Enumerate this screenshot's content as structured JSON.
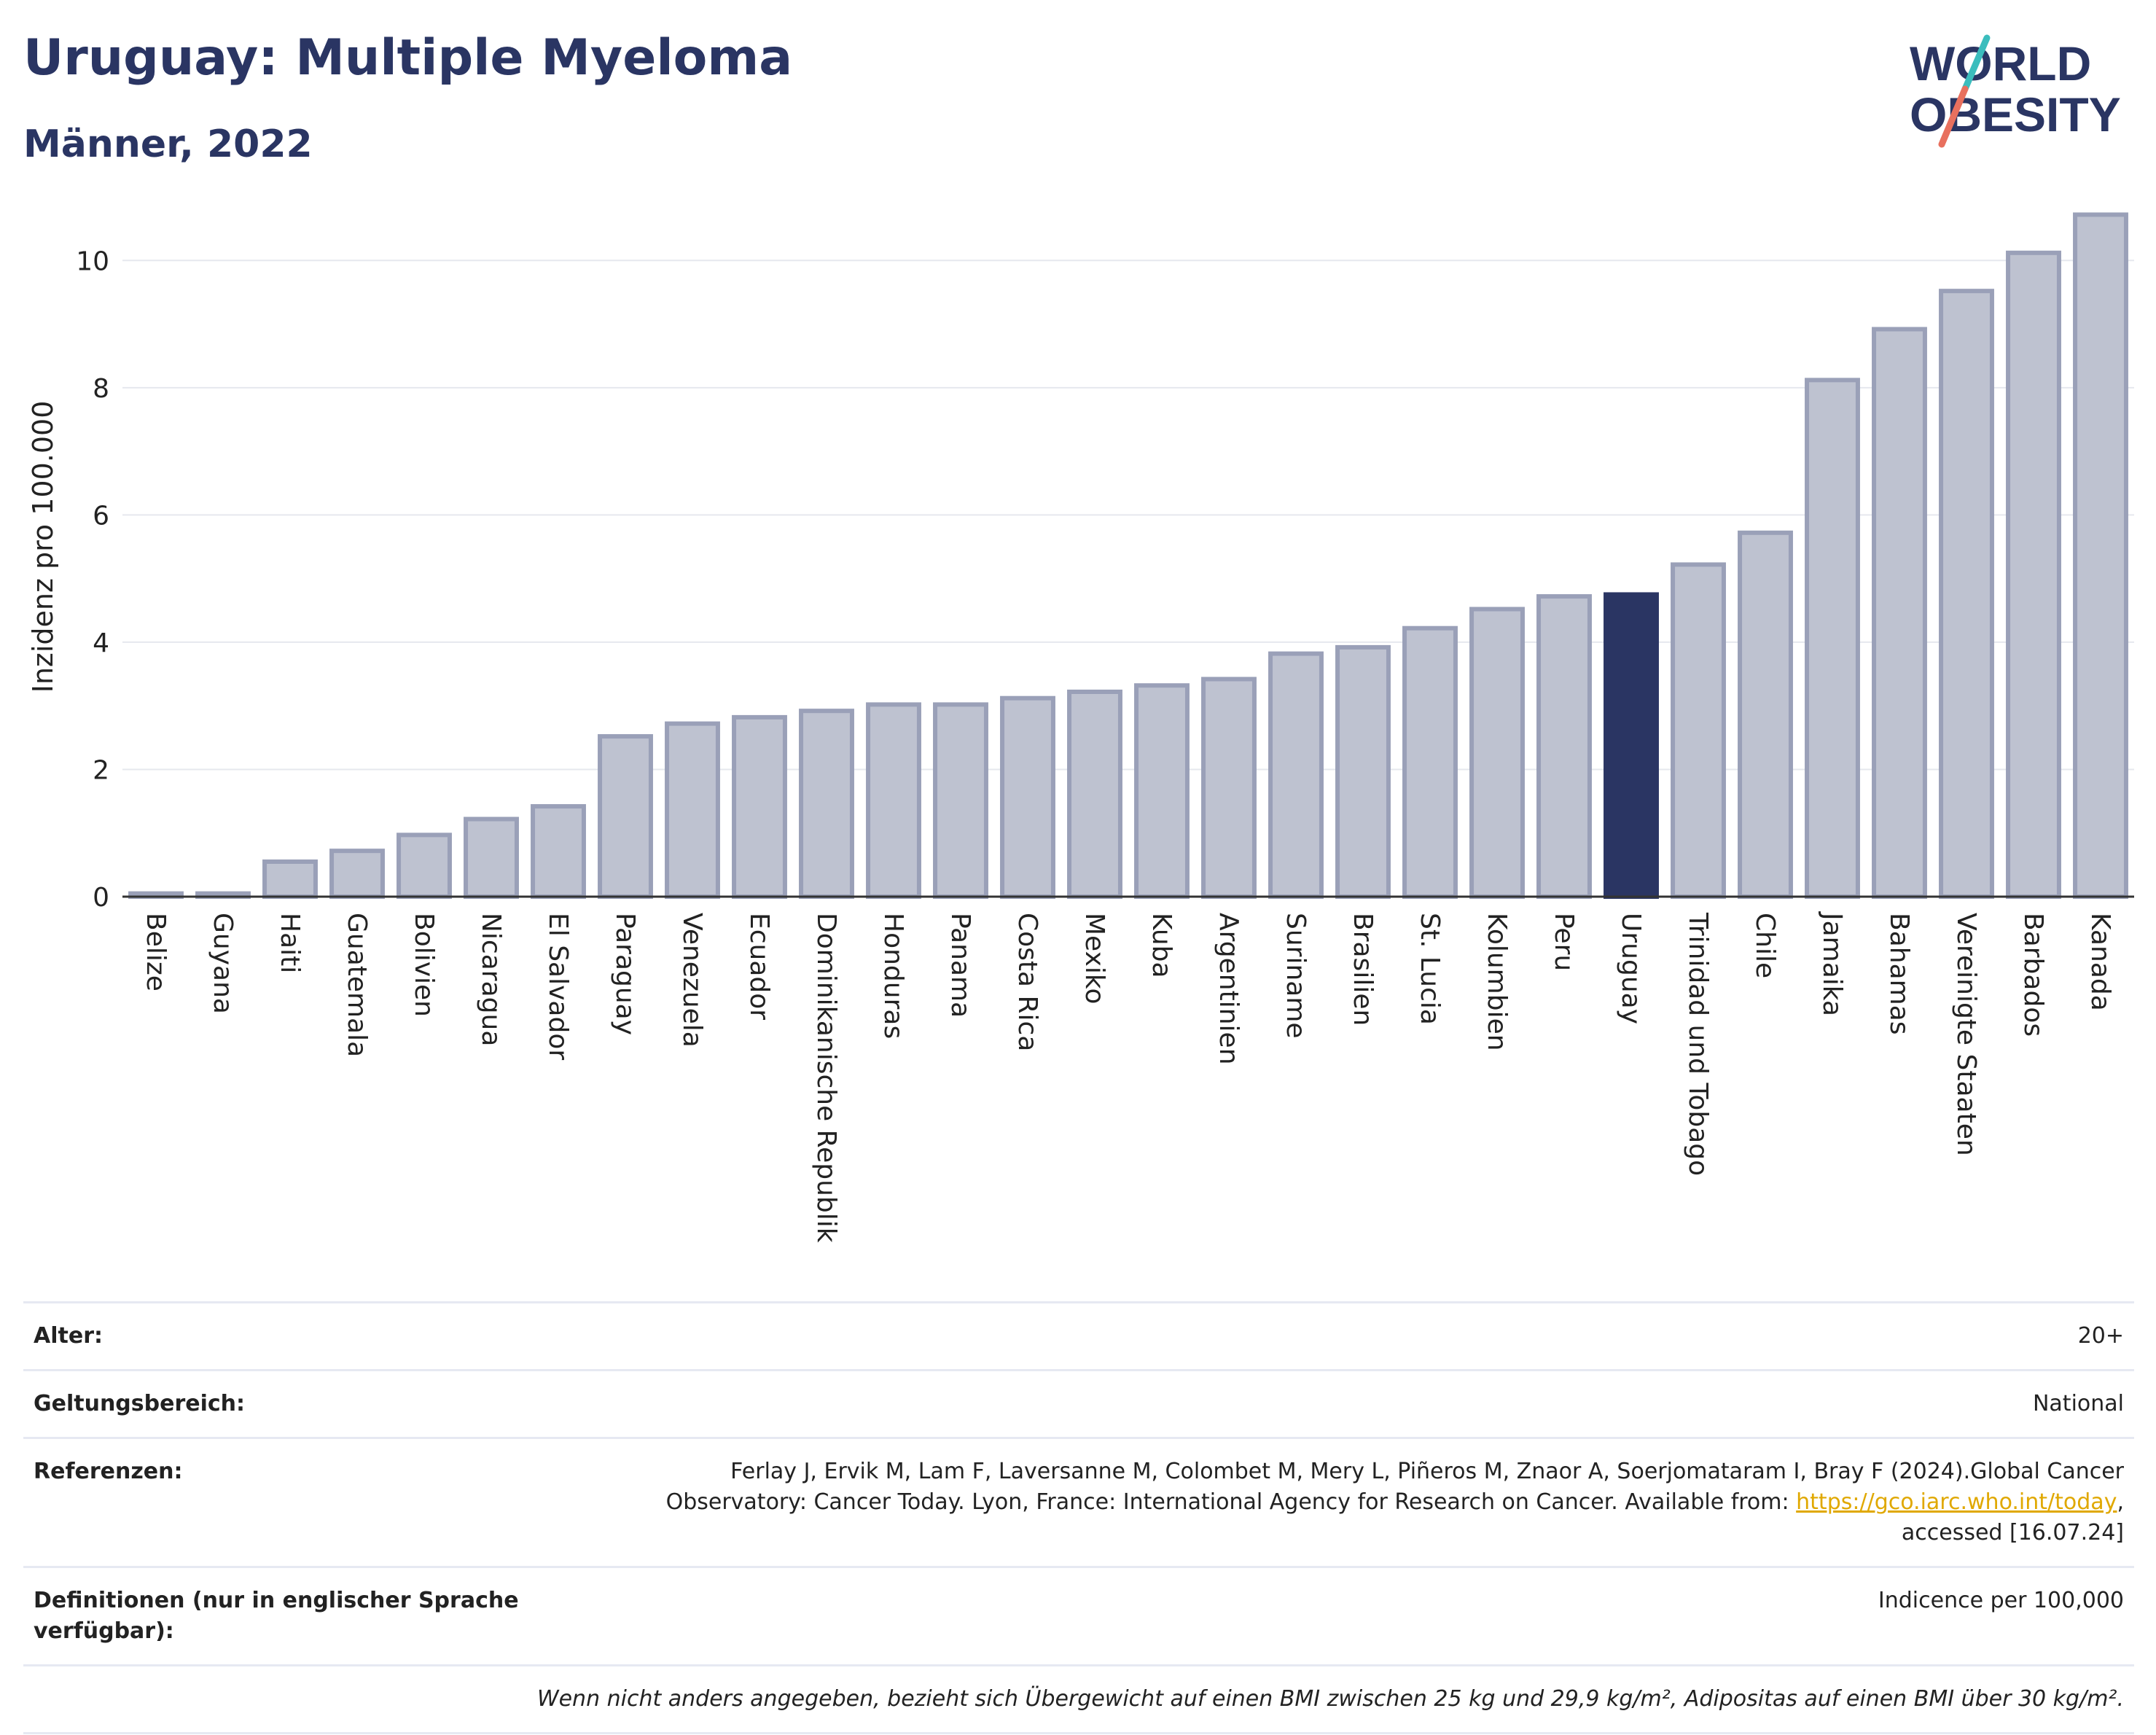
{
  "header": {
    "title": "Uruguay: Multiple Myeloma",
    "subtitle": "Männer, 2022"
  },
  "logo": {
    "line1": "WORLD",
    "line2": "OBESITY"
  },
  "colors": {
    "bar": "#bec2d0",
    "bar_stroke": "#9aa0b8",
    "highlight": "#2a3563",
    "title": "#2a3563",
    "link": "#e0a800"
  },
  "chart_data": {
    "type": "bar",
    "ylabel": "Inzidenz pro 100.000",
    "ylim": [
      0,
      11
    ],
    "yticks": [
      0,
      2,
      4,
      6,
      8,
      10
    ],
    "grid": true,
    "highlight": "Uruguay",
    "categories": [
      "Belize",
      "Guyana",
      "Haiti",
      "Guatemala",
      "Bolivien",
      "Nicaragua",
      "El Salvador",
      "Paraguay",
      "Venezuela",
      "Ecuador",
      "Dominikanische Republik",
      "Honduras",
      "Panama",
      "Costa Rica",
      "Mexiko",
      "Kuba",
      "Argentinien",
      "Suriname",
      "Brasilien",
      "St. Lucia",
      "Kolumbien",
      "Peru",
      "Uruguay",
      "Trinidad und Tobago",
      "Chile",
      "Jamaika",
      "Bahamas",
      "Vereinigte Staaten",
      "Barbados",
      "Kanada"
    ],
    "values": [
      0.05,
      0.05,
      0.55,
      0.72,
      0.97,
      1.22,
      1.42,
      2.52,
      2.72,
      2.82,
      2.92,
      3.02,
      3.02,
      3.12,
      3.22,
      3.32,
      3.42,
      3.82,
      3.92,
      4.22,
      4.52,
      4.72,
      4.75,
      5.22,
      5.72,
      8.12,
      8.92,
      9.52,
      10.12,
      10.72
    ]
  },
  "info": {
    "age_label": "Alter:",
    "age_value": "20+",
    "scope_label": "Geltungsbereich:",
    "scope_value": "National",
    "ref_label": "Referenzen:",
    "ref_line1": "Ferlay J, Ervik M, Lam F, Laversanne M, Colombet M, Mery L, Piñeros M, Znaor A, Soerjomataram I, Bray F (2024).Global Cancer",
    "ref_line2": "Observatory: Cancer Today. Lyon, France: International Agency for Research on Cancer. Available from: ",
    "ref_link": "https://gco.iarc.who.int/today",
    "ref_after_link": ",",
    "ref_line3": "accessed [16.07.24]",
    "def_label": "Definitionen (nur in englischer Sprache verfügbar):",
    "def_value": "Indicence per 100,000",
    "note": "Wenn nicht anders angegeben, bezieht sich Übergewicht auf einen BMI zwischen 25 kg und 29,9 kg/m², Adipositas auf einen BMI über 30 kg/m²."
  }
}
